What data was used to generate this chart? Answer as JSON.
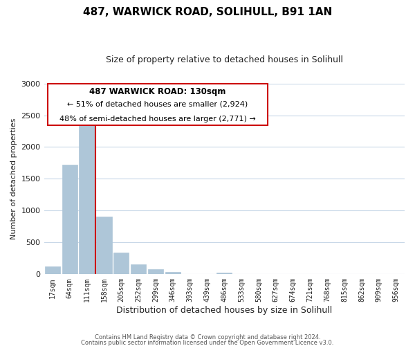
{
  "title": "487, WARWICK ROAD, SOLIHULL, B91 1AN",
  "subtitle": "Size of property relative to detached houses in Solihull",
  "xlabel": "Distribution of detached houses by size in Solihull",
  "ylabel": "Number of detached properties",
  "footer_line1": "Contains HM Land Registry data © Crown copyright and database right 2024.",
  "footer_line2": "Contains public sector information licensed under the Open Government Licence v3.0.",
  "annotation_line1": "487 WARWICK ROAD: 130sqm",
  "annotation_line2": "← 51% of detached houses are smaller (2,924)",
  "annotation_line3": "48% of semi-detached houses are larger (2,771) →",
  "bar_labels": [
    "17sqm",
    "64sqm",
    "111sqm",
    "158sqm",
    "205sqm",
    "252sqm",
    "299sqm",
    "346sqm",
    "393sqm",
    "439sqm",
    "486sqm",
    "533sqm",
    "580sqm",
    "627sqm",
    "674sqm",
    "721sqm",
    "768sqm",
    "815sqm",
    "862sqm",
    "909sqm",
    "956sqm"
  ],
  "bar_values": [
    120,
    1720,
    2370,
    910,
    345,
    155,
    85,
    40,
    0,
    0,
    25,
    0,
    0,
    0,
    0,
    0,
    0,
    0,
    0,
    0,
    0
  ],
  "bar_color": "#aec6d8",
  "red_line_color": "#cc0000",
  "box_color": "#cc0000",
  "background_color": "#ffffff",
  "grid_color": "#c8d8e8",
  "ylim": [
    0,
    3000
  ],
  "yticks": [
    0,
    500,
    1000,
    1500,
    2000,
    2500,
    3000
  ],
  "red_line_x": 2.5
}
